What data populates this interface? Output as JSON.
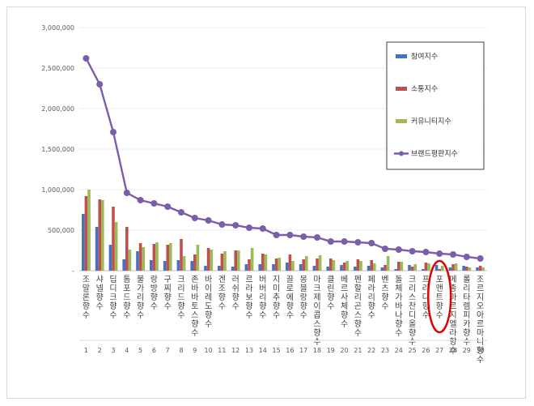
{
  "chart_data": {
    "type": "bar",
    "ylim": [
      0,
      3000000
    ],
    "yticks": [
      "3,000,000",
      "2,500,000",
      "2,000,000",
      "1,500,000",
      "1,000,000",
      "500,000",
      "-"
    ],
    "categories": [
      "조말론향수",
      "샤넬향수",
      "딥디크향수",
      "톰포드향수",
      "불가리향수",
      "랑방향수",
      "구찌향수",
      "크리드향수",
      "존바바토스향수",
      "바이레도향수",
      "겐조향수",
      "러쉬향수",
      "르라보향수",
      "버버리향수",
      "지미추향수",
      "끌로에향수",
      "몽블랑향수",
      "마크제이콥스향수",
      "클린향수",
      "베르사체향수",
      "펜할리곤스향수",
      "페라리향수",
      "벤츠향수",
      "돌체가바나향수",
      "크리스찬디올향수",
      "프라다향수",
      "포맨트향수",
      "메종마르지엘라향수",
      "롤리타렘피카향수",
      "조르지오아르마니향수"
    ],
    "ranks": [
      "1",
      "2",
      "3",
      "4",
      "5",
      "6",
      "7",
      "8",
      "9",
      "10",
      "11",
      "12",
      "13",
      "14",
      "15",
      "16",
      "17",
      "18",
      "19",
      "20",
      "21",
      "22",
      "23",
      "24",
      "25",
      "26",
      "27",
      "28",
      "29",
      "30"
    ],
    "series": [
      {
        "name": "참여지수",
        "type": "bar",
        "color": "#4472c4",
        "values": [
          700000,
          540000,
          320000,
          140000,
          240000,
          130000,
          120000,
          130000,
          120000,
          60000,
          60000,
          50000,
          80000,
          80000,
          80000,
          100000,
          80000,
          60000,
          50000,
          70000,
          50000,
          60000,
          40000,
          20000,
          70000,
          20000,
          70000,
          40000,
          60000,
          40000
        ]
      },
      {
        "name": "소통지수",
        "type": "bar",
        "color": "#c0504d",
        "values": [
          920000,
          880000,
          790000,
          540000,
          340000,
          330000,
          320000,
          390000,
          200000,
          280000,
          210000,
          250000,
          140000,
          210000,
          150000,
          200000,
          140000,
          150000,
          150000,
          100000,
          140000,
          130000,
          70000,
          110000,
          50000,
          100000,
          20000,
          80000,
          50000,
          60000
        ]
      },
      {
        "name": "커뮤니티지수",
        "type": "bar",
        "color": "#9bbb59",
        "values": [
          1000000,
          870000,
          600000,
          260000,
          290000,
          350000,
          340000,
          180000,
          320000,
          260000,
          240000,
          250000,
          280000,
          200000,
          160000,
          120000,
          180000,
          190000,
          130000,
          120000,
          120000,
          90000,
          180000,
          110000,
          80000,
          90000,
          60000,
          90000,
          40000,
          40000
        ]
      },
      {
        "name": "브랜드평판지수",
        "type": "line",
        "color": "#7b5ea7",
        "values": [
          2620000,
          2300000,
          1710000,
          960000,
          870000,
          830000,
          790000,
          720000,
          650000,
          620000,
          570000,
          560000,
          530000,
          520000,
          440000,
          440000,
          420000,
          410000,
          360000,
          360000,
          350000,
          340000,
          270000,
          260000,
          240000,
          230000,
          210000,
          200000,
          170000,
          150000
        ]
      }
    ],
    "legend_position": "top-right",
    "highlight_category": "포맨트향수"
  }
}
